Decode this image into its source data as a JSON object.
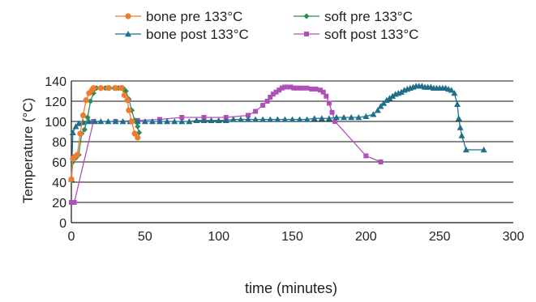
{
  "chart_data": {
    "type": "line",
    "title": "",
    "xlabel": "time (minutes)",
    "ylabel": "Temperature (°C)",
    "xlim": [
      0,
      300
    ],
    "ylim": [
      0,
      140
    ],
    "xticks": [
      "0",
      "50",
      "100",
      "150",
      "200",
      "250",
      "300"
    ],
    "yticks": [
      "0",
      "20",
      "40",
      "60",
      "80",
      "100",
      "120",
      "140"
    ],
    "grid": "horizontal",
    "legend_position": "top",
    "series": [
      {
        "name": "bone pre 133°C",
        "color": "#f07a2e",
        "marker": "circle",
        "points": [
          [
            0,
            43
          ],
          [
            1,
            63
          ],
          [
            2,
            65
          ],
          [
            4,
            67
          ],
          [
            6,
            88
          ],
          [
            8,
            106
          ],
          [
            10,
            121
          ],
          [
            12,
            128
          ],
          [
            14,
            131
          ],
          [
            15,
            133
          ],
          [
            20,
            133
          ],
          [
            25,
            133
          ],
          [
            30,
            133
          ],
          [
            34,
            133
          ],
          [
            36,
            126
          ],
          [
            38,
            121
          ],
          [
            39,
            111
          ],
          [
            41,
            100
          ],
          [
            43,
            88
          ],
          [
            45,
            84
          ]
        ]
      },
      {
        "name": "bone post 133°C",
        "color": "#1f6f8b",
        "marker": "triangle",
        "points": [
          [
            0,
            43
          ],
          [
            1,
            89
          ],
          [
            3,
            95
          ],
          [
            5,
            98
          ],
          [
            8,
            99
          ],
          [
            12,
            100
          ],
          [
            16,
            100
          ],
          [
            20,
            100
          ],
          [
            25,
            100
          ],
          [
            30,
            100
          ],
          [
            35,
            100
          ],
          [
            40,
            100
          ],
          [
            45,
            100
          ],
          [
            50,
            100
          ],
          [
            55,
            100
          ],
          [
            60,
            100
          ],
          [
            65,
            100
          ],
          [
            70,
            100
          ],
          [
            75,
            100
          ],
          [
            80,
            100
          ],
          [
            85,
            101
          ],
          [
            90,
            101
          ],
          [
            95,
            101
          ],
          [
            100,
            101
          ],
          [
            105,
            101
          ],
          [
            110,
            102
          ],
          [
            115,
            102
          ],
          [
            120,
            102
          ],
          [
            125,
            102
          ],
          [
            130,
            102
          ],
          [
            135,
            102
          ],
          [
            140,
            102
          ],
          [
            145,
            102
          ],
          [
            150,
            102
          ],
          [
            155,
            102
          ],
          [
            160,
            102
          ],
          [
            165,
            103
          ],
          [
            170,
            103
          ],
          [
            175,
            103
          ],
          [
            180,
            104
          ],
          [
            185,
            104
          ],
          [
            190,
            104
          ],
          [
            195,
            104
          ],
          [
            200,
            105
          ],
          [
            205,
            107
          ],
          [
            208,
            111
          ],
          [
            210,
            115
          ],
          [
            212,
            118
          ],
          [
            214,
            121
          ],
          [
            216,
            123
          ],
          [
            218,
            125
          ],
          [
            220,
            127
          ],
          [
            222,
            128
          ],
          [
            224,
            129
          ],
          [
            226,
            131
          ],
          [
            228,
            132
          ],
          [
            230,
            133
          ],
          [
            232,
            134
          ],
          [
            234,
            135
          ],
          [
            236,
            135
          ],
          [
            238,
            135
          ],
          [
            240,
            134
          ],
          [
            242,
            134
          ],
          [
            244,
            134
          ],
          [
            246,
            133
          ],
          [
            248,
            133
          ],
          [
            250,
            133
          ],
          [
            252,
            133
          ],
          [
            254,
            133
          ],
          [
            256,
            132
          ],
          [
            258,
            131
          ],
          [
            260,
            128
          ],
          [
            262,
            117
          ],
          [
            263,
            103
          ],
          [
            264,
            94
          ],
          [
            265,
            86
          ],
          [
            268,
            72
          ],
          [
            280,
            72
          ]
        ]
      },
      {
        "name": "soft pre 133°C",
        "color": "#2e8b57",
        "marker": "diamond",
        "points": [
          [
            0,
            42
          ],
          [
            1,
            60
          ],
          [
            3,
            64
          ],
          [
            5,
            67
          ],
          [
            7,
            88
          ],
          [
            9,
            92
          ],
          [
            11,
            104
          ],
          [
            13,
            120
          ],
          [
            15,
            128
          ],
          [
            17,
            133
          ],
          [
            20,
            133
          ],
          [
            23,
            133
          ],
          [
            26,
            133
          ],
          [
            29,
            133
          ],
          [
            32,
            133
          ],
          [
            35,
            133
          ],
          [
            37,
            130
          ],
          [
            39,
            122
          ],
          [
            41,
            111
          ],
          [
            43,
            101
          ],
          [
            45,
            95
          ],
          [
            46,
            89
          ]
        ]
      },
      {
        "name": "soft post 133°C",
        "color": "#b04fb8",
        "marker": "square",
        "points": [
          [
            0,
            20
          ],
          [
            2,
            20
          ],
          [
            15,
            100
          ],
          [
            30,
            100
          ],
          [
            45,
            101
          ],
          [
            60,
            102
          ],
          [
            75,
            104
          ],
          [
            90,
            104
          ],
          [
            105,
            104
          ],
          [
            120,
            106
          ],
          [
            125,
            110
          ],
          [
            130,
            116
          ],
          [
            133,
            120
          ],
          [
            135,
            124
          ],
          [
            137,
            127
          ],
          [
            139,
            129
          ],
          [
            141,
            131
          ],
          [
            143,
            133
          ],
          [
            145,
            134
          ],
          [
            147,
            134
          ],
          [
            149,
            134
          ],
          [
            151,
            133
          ],
          [
            153,
            133
          ],
          [
            155,
            133
          ],
          [
            157,
            133
          ],
          [
            160,
            133
          ],
          [
            163,
            132
          ],
          [
            166,
            132
          ],
          [
            169,
            131
          ],
          [
            171,
            129
          ],
          [
            173,
            125
          ],
          [
            175,
            118
          ],
          [
            177,
            109
          ],
          [
            179,
            100
          ],
          [
            200,
            66
          ],
          [
            210,
            60
          ]
        ]
      }
    ]
  }
}
